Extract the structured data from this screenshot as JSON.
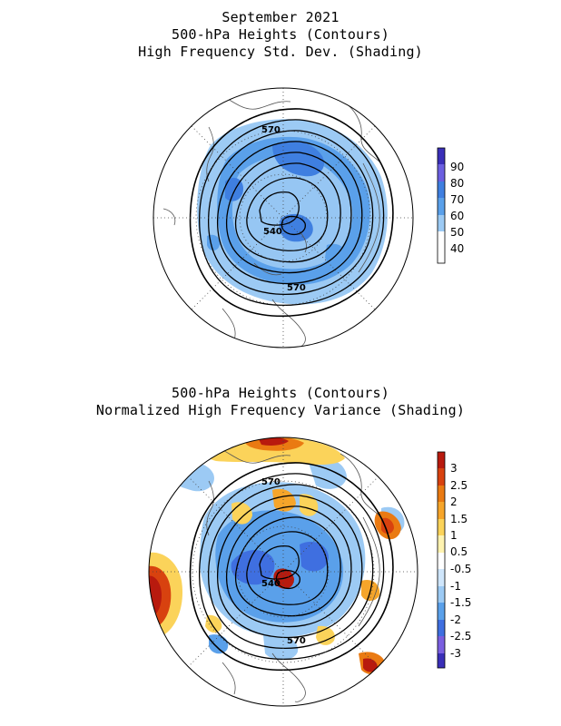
{
  "top_panel": {
    "title_lines": [
      "September 2021",
      "500-hPa Heights (Contours)",
      "High Frequency Std. Dev. (Shading)"
    ],
    "contour_labels": [
      "570",
      "540",
      "570"
    ],
    "colorbar": {
      "labels": [
        "90",
        "80",
        "70",
        "60",
        "50",
        "40"
      ],
      "colors": [
        "#3a2fb8",
        "#6b5fe0",
        "#3f7fe0",
        "#5aa0ea",
        "#9ccaf4",
        "#ffffff"
      ]
    }
  },
  "bottom_panel": {
    "title_lines": [
      "500-hPa Heights (Contours)",
      "Normalized High Frequency Variance (Shading)"
    ],
    "contour_labels": [
      "570",
      "540",
      "570"
    ],
    "colorbar": {
      "labels": [
        "3",
        "2.5",
        "2",
        "1.5",
        "1",
        "0.5",
        "-0.5",
        "-1",
        "-1.5",
        "-2",
        "-2.5",
        "-3"
      ],
      "colors": [
        "#b81a0e",
        "#d8420f",
        "#ea7a12",
        "#f6a52a",
        "#fbd35a",
        "#fff3b0",
        "#ffffff",
        "#cfe6fb",
        "#9ccaf4",
        "#5aa0ea",
        "#3f6fe0",
        "#7a5fe0",
        "#3a2fb8"
      ]
    }
  }
}
